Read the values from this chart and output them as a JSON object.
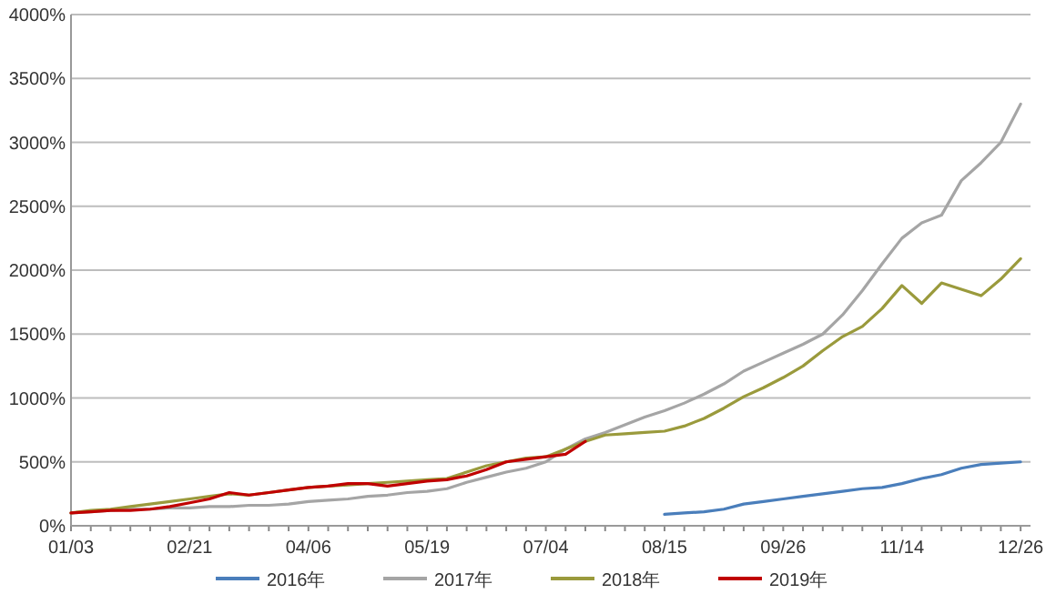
{
  "chart_data": {
    "type": "line",
    "categories": [
      "01/03",
      null,
      null,
      null,
      null,
      null,
      "02/21",
      null,
      null,
      null,
      null,
      null,
      "04/06",
      null,
      null,
      null,
      null,
      null,
      "05/19",
      null,
      null,
      null,
      null,
      null,
      "07/04",
      null,
      null,
      null,
      null,
      null,
      "08/15",
      null,
      null,
      null,
      null,
      null,
      "09/26",
      null,
      null,
      null,
      null,
      null,
      "11/14",
      null,
      null,
      null,
      null,
      null,
      "12/26"
    ],
    "ylim": [
      0,
      4000
    ],
    "yticks": [
      {
        "value": 0,
        "label": "0%"
      },
      {
        "value": 500,
        "label": "500%"
      },
      {
        "value": 1000,
        "label": "1000%"
      },
      {
        "value": 1500,
        "label": "1500%"
      },
      {
        "value": 2000,
        "label": "2000%"
      },
      {
        "value": 2500,
        "label": "2500%"
      },
      {
        "value": 3000,
        "label": "3000%"
      },
      {
        "value": 3500,
        "label": "3500%"
      },
      {
        "value": 4000,
        "label": "4000%"
      }
    ],
    "grid": "y",
    "legend": "bottom",
    "line_style": "solid",
    "series": [
      {
        "name": "2016年",
        "color": "#4a7ebb",
        "values": [
          null,
          null,
          null,
          null,
          null,
          null,
          null,
          null,
          null,
          null,
          null,
          null,
          null,
          null,
          null,
          null,
          null,
          null,
          null,
          null,
          null,
          null,
          null,
          null,
          null,
          null,
          null,
          null,
          null,
          null,
          90,
          100,
          110,
          130,
          170,
          190,
          210,
          230,
          250,
          270,
          290,
          300,
          330,
          370,
          400,
          450,
          480,
          490,
          500
        ]
      },
      {
        "name": "2017年",
        "color": "#a5a5a5",
        "values": [
          100,
          110,
          120,
          130,
          130,
          140,
          140,
          150,
          150,
          160,
          160,
          170,
          190,
          200,
          210,
          230,
          240,
          260,
          270,
          290,
          340,
          380,
          420,
          450,
          500,
          600,
          680,
          730,
          790,
          850,
          900,
          960,
          1030,
          1110,
          1210,
          1280,
          1350,
          1420,
          1500,
          1650,
          1840,
          2050,
          2250,
          2370,
          2430,
          2700,
          2840,
          3000,
          3300
        ]
      },
      {
        "name": "2018年",
        "color": "#9a9a3c",
        "values": [
          100,
          120,
          130,
          150,
          170,
          190,
          210,
          230,
          250,
          240,
          260,
          280,
          300,
          310,
          320,
          330,
          340,
          350,
          360,
          370,
          420,
          470,
          500,
          530,
          540,
          600,
          660,
          710,
          720,
          730,
          740,
          780,
          840,
          920,
          1010,
          1080,
          1160,
          1250,
          1370,
          1480,
          1560,
          1700,
          1880,
          1740,
          1900,
          1850,
          1800,
          1930,
          2090
        ]
      },
      {
        "name": "2019年",
        "color": "#c00000",
        "values": [
          100,
          110,
          120,
          120,
          130,
          150,
          180,
          210,
          260,
          240,
          260,
          280,
          300,
          310,
          330,
          330,
          310,
          330,
          350,
          360,
          390,
          440,
          500,
          520,
          540,
          560,
          660,
          null,
          null,
          null,
          null,
          null,
          null,
          null,
          null,
          null,
          null,
          null,
          null,
          null,
          null,
          null,
          null,
          null,
          null,
          null,
          null,
          null,
          null
        ]
      }
    ]
  }
}
